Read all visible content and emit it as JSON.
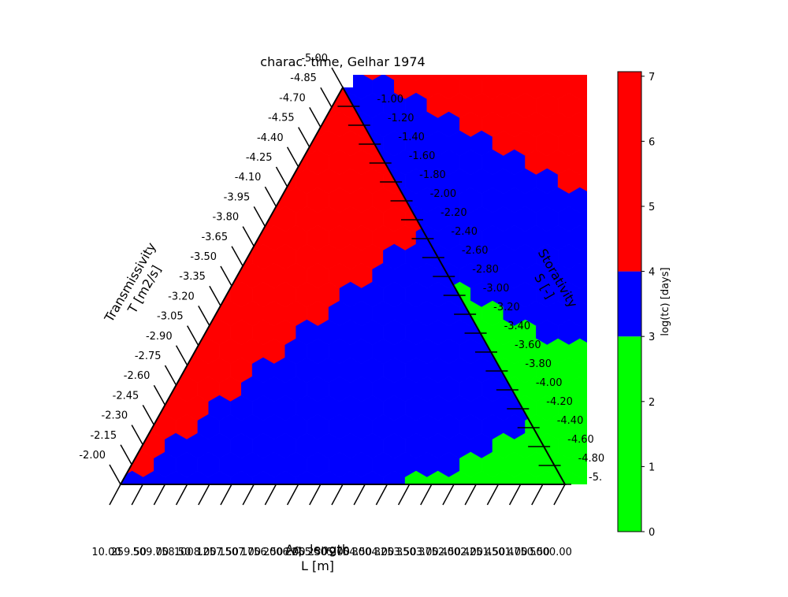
{
  "chart_data": {
    "type": "heatmap",
    "subtype": "ternary-hexbin",
    "title": "charac. time, Gelhar 1974",
    "axes": {
      "bottom": {
        "title_line1": "Aq. length",
        "title_line2": "L [m]",
        "ticks": [
          "10.00",
          "259.50",
          "509.00",
          "758.50",
          "1008.00",
          "1257.50",
          "1507.00",
          "1756.50",
          "2006.00",
          "2255.50",
          "2505.00",
          "2754.50",
          "3004.00",
          "3253.50",
          "3503.00",
          "3752.50",
          "4002.00",
          "4251.50",
          "4501.00",
          "4750.50",
          "5000.00"
        ]
      },
      "left": {
        "title_line1": "Transmissivity",
        "title_line2": "T [m2/s]",
        "ticks": [
          "-2.00",
          "-2.15",
          "-2.30",
          "-2.45",
          "-2.60",
          "-2.75",
          "-2.90",
          "-3.05",
          "-3.20",
          "-3.35",
          "-3.50",
          "-3.65",
          "-3.80",
          "-3.95",
          "-4.10",
          "-4.25",
          "-4.40",
          "-4.55",
          "-4.70",
          "-4.85",
          "-5.00"
        ]
      },
      "right": {
        "title_line1": "Storativity",
        "title_line2": "S [-]",
        "ticks": [
          "-1.00",
          "-1.20",
          "-1.40",
          "-1.60",
          "-1.80",
          "-2.00",
          "-2.20",
          "-2.40",
          "-2.60",
          "-2.80",
          "-3.00",
          "-3.20",
          "-3.40",
          "-3.60",
          "-3.80",
          "-4.00",
          "-4.20",
          "-4.40",
          "-4.60",
          "-4.80",
          "-5.00"
        ],
        "ticks_displayed": [
          "-1.00",
          "-1.20",
          "-1.40",
          "-1.60",
          "-1.80",
          "-2.00",
          "-2.20",
          "-2.40",
          "-2.60",
          "-2.80",
          "-3.00",
          "-3.20",
          "-3.40",
          "-3.60",
          "-3.80",
          "-4.00",
          "-4.20",
          "-4.40",
          "-4.60",
          "-4.80",
          "-5."
        ]
      }
    },
    "colorbar": {
      "label": "log(tc) [days]",
      "range": [
        0,
        7.07
      ],
      "ticks": [
        "0",
        "1",
        "2",
        "3",
        "4",
        "5",
        "6",
        "7"
      ],
      "bins": [
        {
          "from": 0,
          "to": 3,
          "color": "#00ff00"
        },
        {
          "from": 3,
          "to": 4,
          "color": "#0000ff"
        },
        {
          "from": 4,
          "to": 7.07,
          "color": "#ff0000"
        }
      ]
    },
    "regions": [
      {
        "class": "red",
        "value_range": [
          4,
          7.07
        ],
        "color": "#ff0000",
        "description_area": "upper-left of triangle"
      },
      {
        "class": "blue",
        "value_range": [
          3,
          4
        ],
        "color": "#0000ff",
        "description_area": "diagonal band"
      },
      {
        "class": "green",
        "value_range": [
          0,
          3
        ],
        "color": "#00ff00",
        "description_area": "lower-right corner"
      }
    ],
    "grid": false,
    "legend": "colorbar-right"
  }
}
